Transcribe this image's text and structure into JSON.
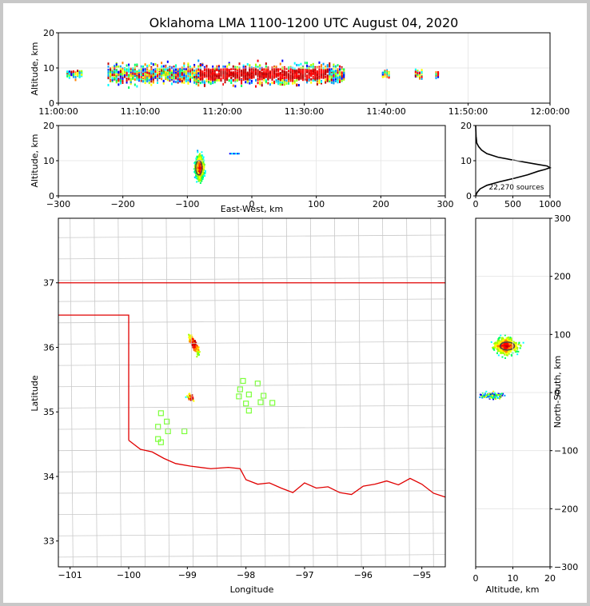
{
  "chart_data": [
    {
      "type": "scatter",
      "name": "altitude-time",
      "title": "Oklahoma LMA 1100-1200 UTC August 04, 2020",
      "ylabel": "Altitude, km",
      "ylim": [
        0,
        20
      ],
      "yticks": [
        "0",
        "10",
        "20"
      ],
      "xticks": [
        "11:00:00",
        "11:10:00",
        "11:20:00",
        "11:30:00",
        "11:40:00",
        "11:50:00",
        "12:00:00"
      ],
      "xlim_minutes": [
        0,
        60
      ],
      "activity_minutes": [
        [
          1,
          3
        ],
        [
          6,
          35
        ],
        [
          39.5,
          40.5
        ],
        [
          43.5,
          44.5
        ],
        [
          46,
          46.5
        ]
      ]
    },
    {
      "type": "scatter",
      "name": "altitude-ew",
      "xlabel": "East-West, km",
      "ylabel": "Altitude, km",
      "xlim": [
        -300,
        300
      ],
      "ylim": [
        0,
        20
      ],
      "xticks": [
        "−300",
        "−200",
        "−100",
        "0",
        "100",
        "200",
        "300"
      ],
      "yticks": [
        "0",
        "10",
        "20"
      ],
      "core_x_km": -82,
      "core_alt_km": 8
    },
    {
      "type": "line",
      "name": "altitude-histogram",
      "xlim": [
        0,
        1000
      ],
      "ylim": [
        0,
        20
      ],
      "xticks": [
        "0",
        "500",
        "1000"
      ],
      "yticks": [
        "0",
        "10",
        "20"
      ],
      "annotation": "22,270 sources",
      "profile": [
        [
          0,
          0
        ],
        [
          20,
          1
        ],
        [
          60,
          2
        ],
        [
          150,
          3
        ],
        [
          320,
          4
        ],
        [
          520,
          5
        ],
        [
          700,
          6
        ],
        [
          840,
          7
        ],
        [
          930,
          7.5
        ],
        [
          1000,
          8
        ],
        [
          960,
          8.5
        ],
        [
          820,
          9
        ],
        [
          550,
          10
        ],
        [
          300,
          11
        ],
        [
          150,
          12
        ],
        [
          80,
          13
        ],
        [
          40,
          14
        ],
        [
          15,
          15
        ],
        [
          5,
          17
        ],
        [
          0,
          20
        ]
      ]
    },
    {
      "type": "scatter",
      "name": "plan-view",
      "xlabel": "Longitude",
      "ylabel": "Latitude",
      "xlim": [
        -101.2,
        -94.6
      ],
      "ylim": [
        32.6,
        38
      ],
      "xticks": [
        "−101",
        "−100",
        "−99",
        "−98",
        "−97",
        "−96",
        "−95"
      ],
      "yticks": [
        "33",
        "34",
        "35",
        "36",
        "37"
      ],
      "stations": [
        [
          -98.05,
          35.48
        ],
        [
          -97.8,
          35.44
        ],
        [
          -98.1,
          35.35
        ],
        [
          -97.95,
          35.27
        ],
        [
          -98.12,
          35.24
        ],
        [
          -97.7,
          35.25
        ],
        [
          -97.55,
          35.14
        ],
        [
          -97.75,
          35.15
        ],
        [
          -98.0,
          35.13
        ],
        [
          -97.95,
          35.02
        ],
        [
          -99.45,
          34.98
        ],
        [
          -99.35,
          34.85
        ],
        [
          -99.5,
          34.77
        ],
        [
          -99.33,
          34.7
        ],
        [
          -99.05,
          34.7
        ],
        [
          -99.5,
          34.58
        ],
        [
          -99.45,
          34.53
        ]
      ]
    },
    {
      "type": "scatter",
      "name": "ns-altitude",
      "xlabel": "Altitude, km",
      "ylabel": "North-South, km",
      "xlim": [
        0,
        20
      ],
      "ylim": [
        -300,
        300
      ],
      "xticks": [
        "0",
        "10",
        "20"
      ],
      "yticks": [
        "−300",
        "−200",
        "−100",
        "0",
        "100",
        "200",
        "300"
      ]
    }
  ]
}
